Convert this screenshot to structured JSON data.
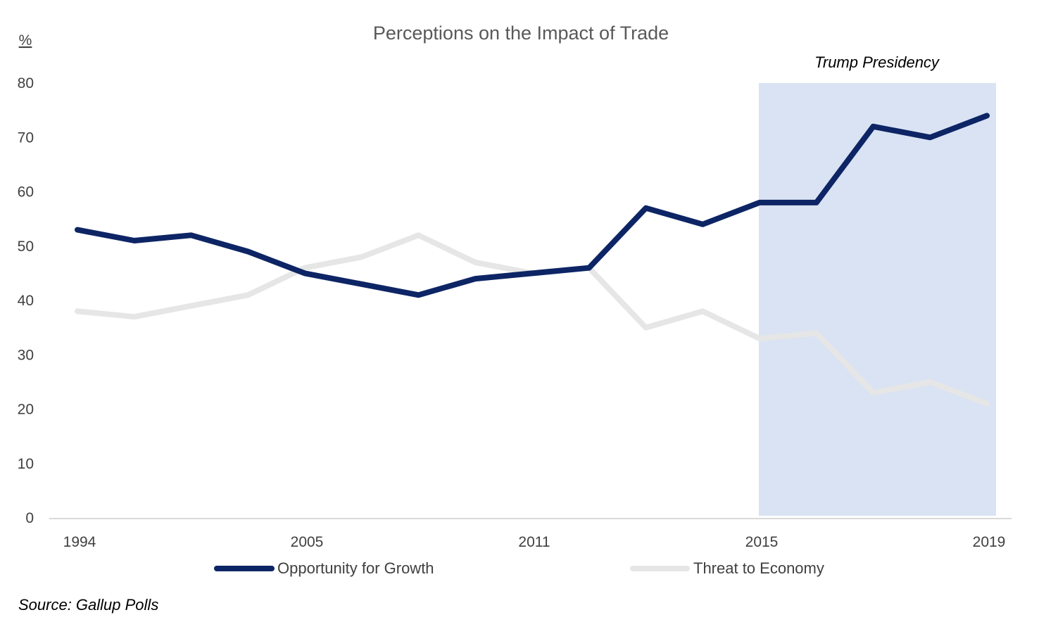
{
  "chart_data": {
    "type": "line",
    "title": "Perceptions on the Impact of Trade",
    "y_unit_label": "%",
    "ylim": [
      0,
      80
    ],
    "y_ticks": [
      0,
      10,
      20,
      30,
      40,
      50,
      60,
      70,
      80
    ],
    "x": [
      1994,
      1995,
      1996,
      1997,
      2005,
      2006,
      2008,
      2009,
      2011,
      2012,
      2013,
      2014,
      2015,
      2016,
      2017,
      2018,
      2019
    ],
    "x_tick_labels": [
      "1994",
      "2005",
      "2011",
      "2015",
      "2019"
    ],
    "series": [
      {
        "name": "Opportunity for Growth",
        "color": "#0d2565",
        "values": [
          53,
          51,
          52,
          49,
          45,
          43,
          41,
          44,
          45,
          46,
          57,
          54,
          58,
          58,
          72,
          70,
          74
        ]
      },
      {
        "name": "Threat to Economy",
        "color": "#e6e6e6",
        "values": [
          38,
          37,
          39,
          41,
          46,
          48,
          52,
          47,
          45,
          46,
          35,
          38,
          33,
          34,
          23,
          25,
          21
        ]
      }
    ],
    "shaded_region": {
      "label": "Trump Presidency",
      "from": "2015",
      "to": "2019",
      "color": "#dae3f3"
    },
    "legend_position": "bottom",
    "grid": false
  },
  "source_note": "Source: Gallup Polls"
}
